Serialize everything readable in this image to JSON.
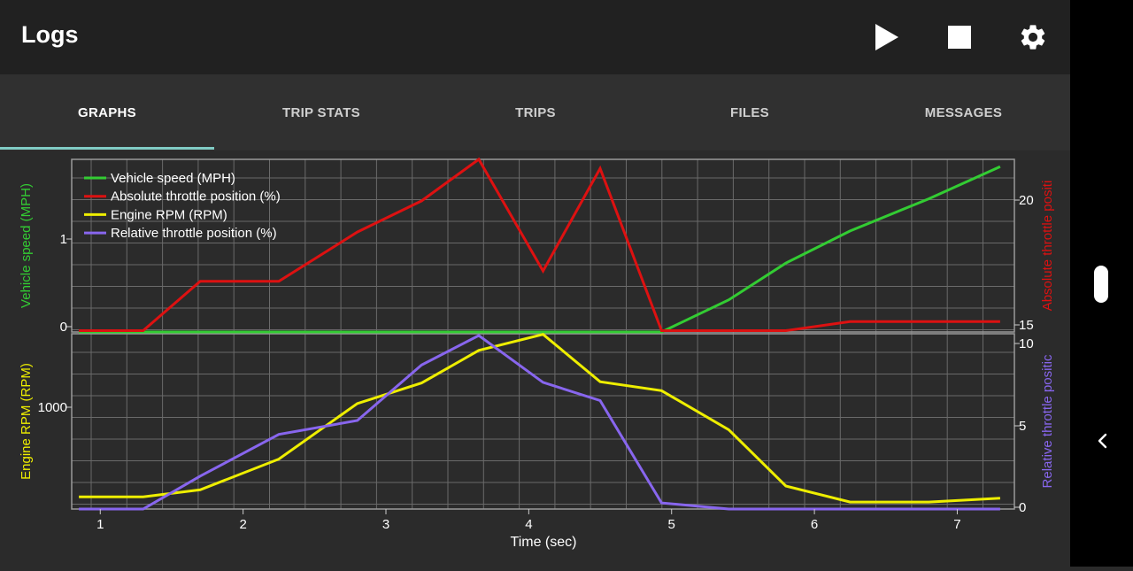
{
  "app": {
    "title": "Logs"
  },
  "actions": [
    {
      "name": "play-icon"
    },
    {
      "name": "stop-icon"
    },
    {
      "name": "settings-gear-icon"
    }
  ],
  "tabs": [
    {
      "label": "GRAPHS",
      "active": true
    },
    {
      "label": "TRIP STATS",
      "active": false
    },
    {
      "label": "TRIPS",
      "active": false
    },
    {
      "label": "FILES",
      "active": false
    },
    {
      "label": "MESSAGES",
      "active": false
    }
  ],
  "chart_data": [
    {
      "type": "line",
      "xlabel": "",
      "xlim": [
        0.8,
        7.4
      ],
      "grid": true,
      "legend_position": "top-left",
      "series": [
        {
          "name": "Vehicle speed (MPH)",
          "axis": "left",
          "color": "#33cc33",
          "x": [
            0.85,
            1.3,
            1.7,
            2.25,
            2.8,
            3.25,
            3.65,
            4.1,
            4.5,
            4.93,
            5.4,
            5.8,
            6.25,
            6.8,
            7.3
          ],
          "y": [
            0,
            0,
            0,
            0,
            0,
            0,
            0,
            0,
            0,
            0,
            0.35,
            0.75,
            1.1,
            1.45,
            1.8
          ]
        },
        {
          "name": "Absolute throttle position (%)",
          "axis": "right",
          "color": "#dd1111",
          "x": [
            0.85,
            1.3,
            1.7,
            2.25,
            2.8,
            3.25,
            3.65,
            4.1,
            4.5,
            4.93,
            5.4,
            5.8,
            6.25,
            6.8,
            7.3
          ],
          "y": [
            15,
            15,
            16.9,
            16.9,
            18.8,
            20,
            21.6,
            17.3,
            21.25,
            15,
            15,
            15,
            15.35,
            15.35,
            15.35
          ]
        }
      ],
      "ylabel_left": "Vehicle speed (MPH)",
      "ylim_left": [
        0,
        1.88
      ],
      "yticks_left": [
        "0",
        "1"
      ],
      "ylabel_right": "Absolute throttle positi",
      "ylim_right": [
        14.95,
        21.6
      ],
      "yticks_right": [
        "15",
        "20"
      ]
    },
    {
      "type": "line",
      "xlabel": "Time (sec)",
      "xlim": [
        0.8,
        7.4
      ],
      "xticks": [
        "1",
        "2",
        "3",
        "4",
        "5",
        "6",
        "7"
      ],
      "grid": true,
      "legend_position": "top-left",
      "series": [
        {
          "name": "Engine RPM (RPM)",
          "axis": "left",
          "color": "#eeee00",
          "x": [
            0.85,
            1.3,
            1.7,
            2.25,
            2.8,
            3.25,
            3.65,
            4.1,
            4.5,
            4.93,
            5.4,
            5.8,
            6.25,
            6.8,
            7.3
          ],
          "y": [
            40,
            40,
            95,
            335,
            770,
            930,
            1185,
            1310,
            940,
            870,
            565,
            125,
            0,
            0,
            30
          ]
        },
        {
          "name": "Relative throttle position (%)",
          "axis": "right",
          "color": "#8866ee",
          "x": [
            0.85,
            1.3,
            1.7,
            2.25,
            2.8,
            3.25,
            3.65,
            4.1,
            4.5,
            4.93,
            5.4,
            5.8,
            6.25,
            6.8,
            7.3
          ],
          "y": [
            0,
            0,
            1.9,
            4.3,
            5.1,
            8.3,
            10.0,
            7.3,
            6.25,
            0.35,
            0,
            0,
            0,
            0,
            0
          ]
        }
      ],
      "ylabel_left": "Engine RPM (RPM)",
      "ylim_left": [
        -55,
        1315
      ],
      "yticks_left": [
        "1000"
      ],
      "ylabel_right": "Relative throttle positic",
      "ylim_right": [
        0,
        10.1
      ],
      "yticks_right": [
        "0",
        "5",
        "10"
      ]
    }
  ],
  "colors": {
    "appbar": "#212121",
    "tabbar": "#303030",
    "indicator": "#80cbc4",
    "plot_bg": "#2b2b2b",
    "grid": "#6a6a6a"
  }
}
